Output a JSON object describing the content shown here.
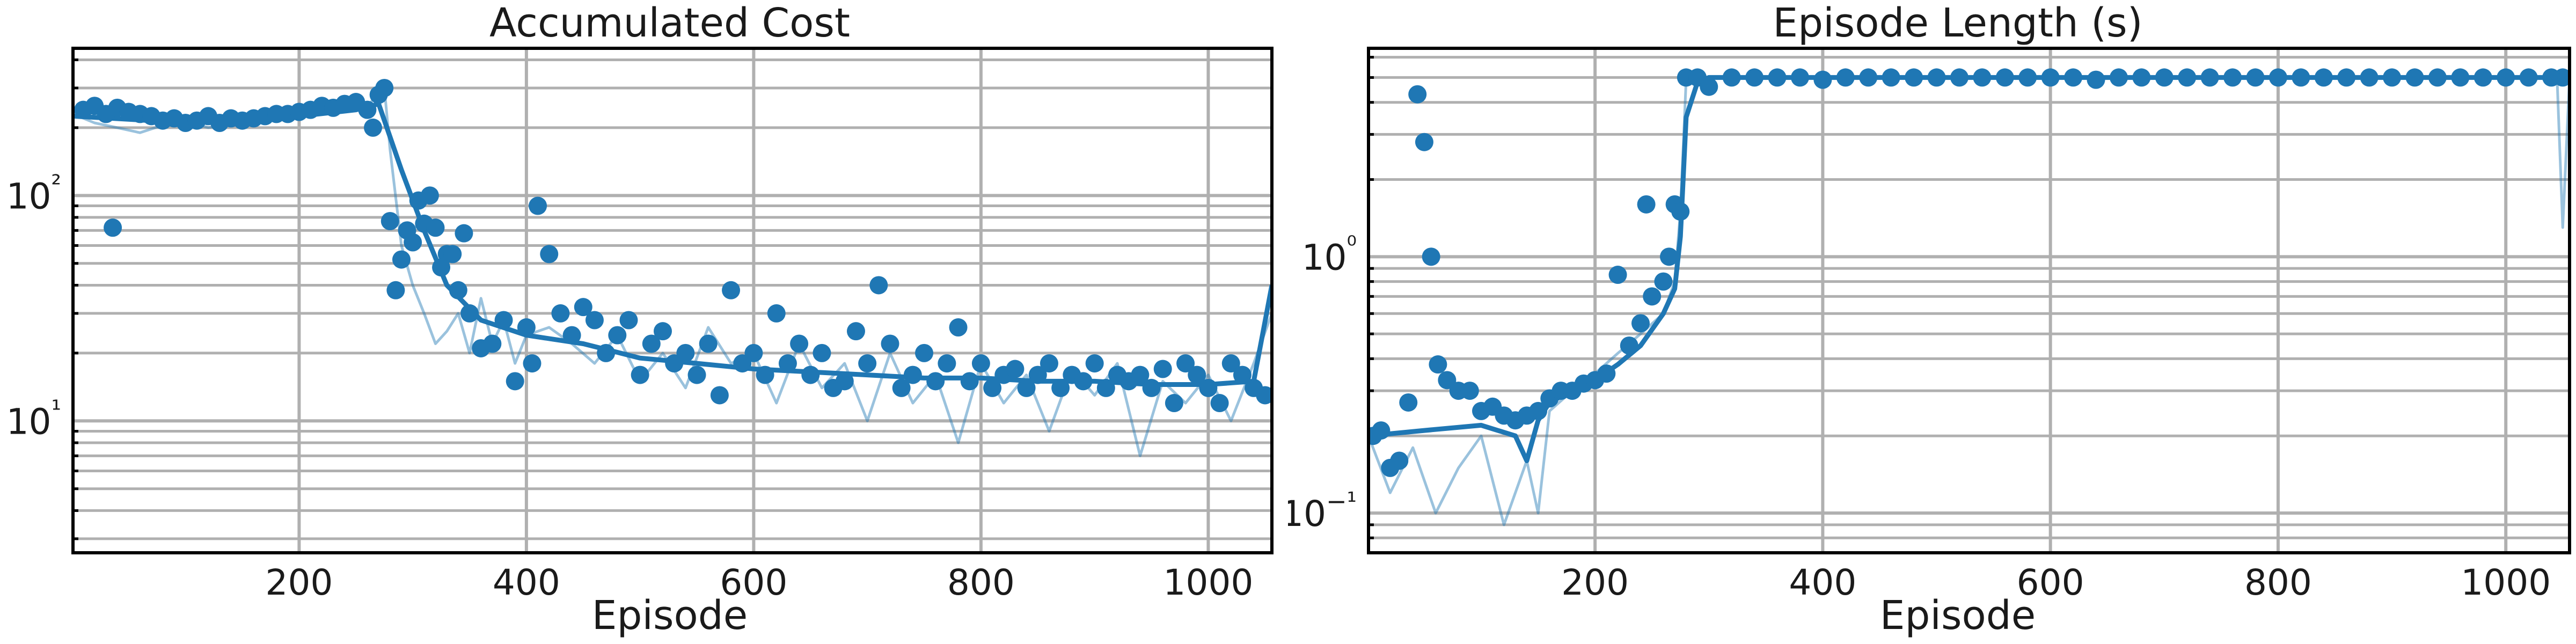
{
  "chart_data": [
    {
      "type": "scatter",
      "title": "Accumulated Cost",
      "xlabel": "Episode",
      "ylabel": "",
      "xlim": [
        1,
        1056
      ],
      "ylim": [
        2.6,
        450
      ],
      "yscale": "log",
      "grid": true,
      "xticks": [
        200,
        400,
        600,
        800,
        1000
      ],
      "xtick_labels": [
        "200",
        "400",
        "600",
        "800",
        "1000"
      ],
      "yticks": [
        10,
        100
      ],
      "color": "#1f77b4",
      "series": [
        {
          "kind": "raw_line",
          "x": [
            1,
            20,
            40,
            60,
            80,
            100,
            120,
            140,
            160,
            180,
            200,
            220,
            240,
            260,
            275,
            280,
            290,
            300,
            310,
            320,
            330,
            340,
            350,
            360,
            370,
            380,
            390,
            400,
            420,
            440,
            460,
            480,
            500,
            520,
            540,
            560,
            580,
            600,
            620,
            640,
            660,
            680,
            700,
            720,
            740,
            760,
            780,
            800,
            820,
            840,
            860,
            880,
            900,
            920,
            940,
            960,
            980,
            1000,
            1020,
            1040,
            1056
          ],
          "y": [
            230,
            210,
            200,
            190,
            205,
            215,
            200,
            210,
            220,
            215,
            225,
            235,
            240,
            250,
            300,
            160,
            60,
            40,
            30,
            22,
            25,
            30,
            20,
            35,
            22,
            28,
            18,
            24,
            26,
            22,
            18,
            24,
            15,
            20,
            14,
            26,
            18,
            20,
            12,
            22,
            14,
            18,
            10,
            20,
            12,
            16,
            8,
            18,
            12,
            16,
            9,
            17,
            13,
            18,
            7,
            15,
            12,
            16,
            10,
            18,
            30
          ]
        },
        {
          "kind": "smoothed_line",
          "x": [
            1,
            50,
            100,
            150,
            200,
            250,
            270,
            290,
            310,
            330,
            360,
            400,
            450,
            500,
            550,
            600,
            650,
            700,
            750,
            800,
            850,
            900,
            950,
            1000,
            1040,
            1056
          ],
          "y": [
            225,
            218,
            210,
            215,
            225,
            240,
            255,
            130,
            70,
            40,
            28,
            24,
            22,
            19,
            18,
            17,
            16.5,
            16,
            15.5,
            15.5,
            15,
            15,
            14.5,
            14.5,
            15,
            40
          ]
        },
        {
          "kind": "markers",
          "x": [
            10,
            20,
            30,
            36,
            40,
            50,
            60,
            70,
            80,
            90,
            100,
            110,
            120,
            130,
            140,
            150,
            160,
            170,
            180,
            190,
            200,
            210,
            220,
            230,
            240,
            250,
            260,
            265,
            270,
            275,
            280,
            285,
            290,
            295,
            300,
            305,
            310,
            315,
            320,
            325,
            330,
            335,
            340,
            345,
            350,
            360,
            370,
            380,
            390,
            400,
            405,
            410,
            420,
            430,
            440,
            450,
            460,
            470,
            480,
            490,
            500,
            510,
            520,
            530,
            540,
            550,
            560,
            570,
            580,
            590,
            600,
            610,
            620,
            630,
            640,
            650,
            660,
            670,
            680,
            690,
            700,
            710,
            720,
            730,
            740,
            750,
            760,
            770,
            780,
            790,
            800,
            810,
            820,
            830,
            840,
            850,
            860,
            870,
            880,
            890,
            900,
            910,
            920,
            930,
            940,
            950,
            960,
            970,
            980,
            990,
            1000,
            1010,
            1020,
            1030,
            1040,
            1050
          ],
          "y": [
            240,
            250,
            230,
            72,
            245,
            235,
            230,
            225,
            215,
            220,
            210,
            215,
            225,
            210,
            220,
            215,
            220,
            225,
            230,
            230,
            235,
            240,
            250,
            245,
            255,
            260,
            240,
            200,
            280,
            300,
            77,
            38,
            52,
            70,
            62,
            95,
            75,
            100,
            72,
            48,
            55,
            55,
            38,
            68,
            30,
            21,
            22,
            28,
            15,
            26,
            18,
            90,
            55,
            30,
            24,
            32,
            28,
            20,
            24,
            28,
            16,
            22,
            25,
            18,
            20,
            16,
            22,
            13,
            38,
            18,
            20,
            16,
            30,
            18,
            22,
            16,
            20,
            14,
            15,
            25,
            18,
            40,
            22,
            14,
            16,
            20,
            15,
            18,
            26,
            15,
            18,
            14,
            16,
            17,
            14,
            16,
            18,
            14,
            16,
            15,
            18,
            14,
            16,
            15,
            16,
            14,
            17,
            12,
            18,
            16,
            14,
            12,
            18,
            16,
            14,
            13
          ]
        }
      ]
    },
    {
      "type": "scatter",
      "title": "Episode Length (s)",
      "xlabel": "Episode",
      "ylabel": "",
      "xlim": [
        1,
        1056
      ],
      "ylim": [
        0.07,
        6.5
      ],
      "yscale": "log",
      "grid": true,
      "xticks": [
        200,
        400,
        600,
        800,
        1000
      ],
      "xtick_labels": [
        "200",
        "400",
        "600",
        "800",
        "1000"
      ],
      "yticks": [
        0.1,
        1
      ],
      "color": "#1f77b4",
      "series": [
        {
          "kind": "raw_line",
          "x": [
            1,
            20,
            40,
            60,
            80,
            100,
            120,
            140,
            150,
            160,
            180,
            200,
            220,
            240,
            260,
            270,
            275,
            280,
            285,
            300,
            400,
            600,
            800,
            1000,
            1045,
            1050,
            1056
          ],
          "y": [
            0.2,
            0.12,
            0.18,
            0.1,
            0.15,
            0.2,
            0.09,
            0.16,
            0.1,
            0.25,
            0.3,
            0.35,
            0.42,
            0.5,
            0.6,
            0.8,
            1.5,
            4.9,
            5.0,
            5.0,
            5.0,
            5.0,
            5.0,
            5.0,
            5.0,
            1.3,
            5.0
          ]
        },
        {
          "kind": "smoothed_line",
          "x": [
            1,
            50,
            100,
            130,
            140,
            150,
            160,
            180,
            200,
            220,
            240,
            260,
            270,
            275,
            280,
            290,
            300,
            400,
            600,
            800,
            1000,
            1056
          ],
          "y": [
            0.2,
            0.21,
            0.22,
            0.2,
            0.16,
            0.23,
            0.27,
            0.3,
            0.33,
            0.38,
            0.45,
            0.6,
            0.75,
            1.2,
            3.5,
            4.8,
            5.0,
            5.0,
            5.0,
            5.0,
            5.0,
            5.0
          ]
        },
        {
          "kind": "markers",
          "x": [
            5,
            12,
            20,
            28,
            36,
            44,
            50,
            56,
            62,
            70,
            80,
            90,
            100,
            110,
            120,
            130,
            140,
            150,
            160,
            170,
            180,
            190,
            200,
            210,
            220,
            230,
            240,
            245,
            250,
            260,
            265,
            270,
            275,
            280,
            290,
            300,
            320,
            340,
            360,
            380,
            400,
            420,
            440,
            460,
            480,
            500,
            520,
            540,
            560,
            580,
            600,
            620,
            640,
            660,
            680,
            700,
            720,
            740,
            760,
            780,
            800,
            820,
            840,
            860,
            880,
            900,
            920,
            940,
            960,
            980,
            1000,
            1020,
            1040,
            1050
          ],
          "y": [
            0.2,
            0.21,
            0.15,
            0.16,
            0.27,
            4.3,
            2.8,
            1.0,
            0.38,
            0.33,
            0.3,
            0.3,
            0.25,
            0.26,
            0.24,
            0.23,
            0.24,
            0.25,
            0.28,
            0.3,
            0.3,
            0.32,
            0.33,
            0.35,
            0.85,
            0.45,
            0.55,
            1.6,
            0.7,
            0.8,
            1.0,
            1.6,
            1.5,
            5.0,
            5.0,
            4.6,
            5.0,
            5.0,
            5.0,
            5.0,
            4.9,
            5.0,
            5.0,
            5.0,
            5.0,
            5.0,
            5.0,
            5.0,
            5.0,
            5.0,
            5.0,
            5.0,
            4.9,
            5.0,
            5.0,
            5.0,
            5.0,
            5.0,
            5.0,
            5.0,
            5.0,
            5.0,
            5.0,
            5.0,
            5.0,
            5.0,
            5.0,
            5.0,
            5.0,
            5.0,
            5.0,
            5.0,
            5.0,
            5.0
          ]
        }
      ]
    }
  ]
}
